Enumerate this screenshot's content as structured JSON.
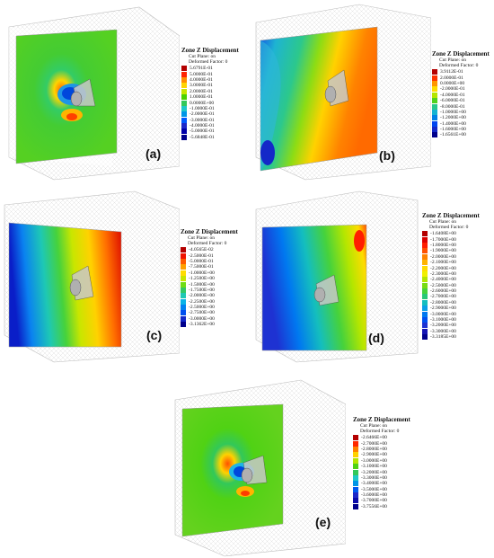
{
  "panels": [
    {
      "id": "a",
      "label": "(a)",
      "legend": {
        "title": "Zone Z Displacement",
        "cut_plane": "Cut Plane: on",
        "deformed": "Deformed Factor: 0",
        "values": [
          "5.6791E-01",
          "5.0000E-01",
          "4.0000E-01",
          "3.0000E-01",
          "2.0000E-01",
          "1.0000E-01",
          "0.0000E+00",
          "-1.0000E-01",
          "-2.0000E-01",
          "-3.0000E-01",
          "-4.0000E-01",
          "-5.0000E-01",
          "-5.6848E-01"
        ],
        "colors": [
          "#b40000",
          "#ff2200",
          "#ff8c00",
          "#ffd400",
          "#c8e600",
          "#4cd200",
          "#32c85a",
          "#1ec8c8",
          "#0096e6",
          "#005aff",
          "#1e28c8",
          "#0000aa",
          "#00008c"
        ]
      }
    },
    {
      "id": "b",
      "label": "(b)",
      "legend": {
        "title": "Zone Z Displacement",
        "cut_plane": "Cut Plane: on",
        "deformed": "Deformed Factor: 0",
        "values": [
          "3.9112E-01",
          "2.0000E-01",
          "0.0000E+00",
          "-2.0000E-01",
          "-4.0000E-01",
          "-6.0000E-01",
          "-8.0000E-01",
          "-1.0000E+00",
          "-1.2000E+00",
          "-1.4000E+00",
          "-1.6000E+00",
          "-1.6561E+00"
        ],
        "colors": [
          "#b40000",
          "#ff3200",
          "#ff9600",
          "#ffdc00",
          "#b4e600",
          "#50d21e",
          "#28c88c",
          "#14b4d2",
          "#0082e6",
          "#0046f0",
          "#1428c8",
          "#00008c"
        ]
      }
    },
    {
      "id": "c",
      "label": "(c)",
      "legend": {
        "title": "Zone Z Displacement",
        "cut_plane": "Cut Plane: on",
        "deformed": "Deformed Factor: 0",
        "values": [
          "-4.0565E-02",
          "-2.5000E-01",
          "-5.0000E-01",
          "-7.5000E-01",
          "-1.0000E+00",
          "-1.2500E+00",
          "-1.5000E+00",
          "-1.7500E+00",
          "-2.0000E+00",
          "-2.2500E+00",
          "-2.5000E+00",
          "-2.7500E+00",
          "-3.0000E+00",
          "-3.1362E+00"
        ],
        "colors": [
          "#b40000",
          "#f01400",
          "#ff5a00",
          "#ffa000",
          "#ffdc00",
          "#c8e600",
          "#6edc14",
          "#32c864",
          "#1ec8b4",
          "#0ab4e6",
          "#0082f0",
          "#0050f0",
          "#1428c8",
          "#00008c"
        ]
      }
    },
    {
      "id": "d",
      "label": "(d)",
      "legend": {
        "title": "Zone Z Displacement",
        "cut_plane": "Cut Plane: on",
        "deformed": "Deformed Factor: 0",
        "values": [
          "-1.6408E+00",
          "-1.7000E+00",
          "-1.8000E+00",
          "-1.9000E+00",
          "-2.0000E+00",
          "-2.1000E+00",
          "-2.2000E+00",
          "-2.3000E+00",
          "-2.4000E+00",
          "-2.5000E+00",
          "-2.6000E+00",
          "-2.7000E+00",
          "-2.8000E+00",
          "-2.9000E+00",
          "-3.0000E+00",
          "-3.1000E+00",
          "-3.2000E+00",
          "-3.3000E+00",
          "-3.3185E+00"
        ],
        "colors": [
          "#b40000",
          "#dc0000",
          "#ff1e00",
          "#ff5000",
          "#ff8200",
          "#ffb400",
          "#ffdc00",
          "#f0f000",
          "#b4e600",
          "#78dc14",
          "#46d23c",
          "#28c878",
          "#14bebe",
          "#0aa0e6",
          "#0078f0",
          "#0050f0",
          "#1e32d2",
          "#1414b4",
          "#00008c"
        ]
      }
    },
    {
      "id": "e",
      "label": "(e)",
      "legend": {
        "title": "Zone Z Displacement",
        "cut_plane": "Cut Plane: on",
        "deformed": "Deformed Factor: 0",
        "values": [
          "-2.6466E+00",
          "-2.7000E+00",
          "-2.8000E+00",
          "-2.9000E+00",
          "-3.0000E+00",
          "-3.1000E+00",
          "-3.2000E+00",
          "-3.3000E+00",
          "-3.4000E+00",
          "-3.5000E+00",
          "-3.6000E+00",
          "-3.7000E+00",
          "-3.7556E+00"
        ],
        "colors": [
          "#b40000",
          "#ff2800",
          "#ff8200",
          "#ffd200",
          "#b4e600",
          "#50d214",
          "#32c85a",
          "#1ec8c8",
          "#0096e6",
          "#005af0",
          "#1e28c8",
          "#0a0aaa",
          "#00008c"
        ]
      }
    }
  ]
}
